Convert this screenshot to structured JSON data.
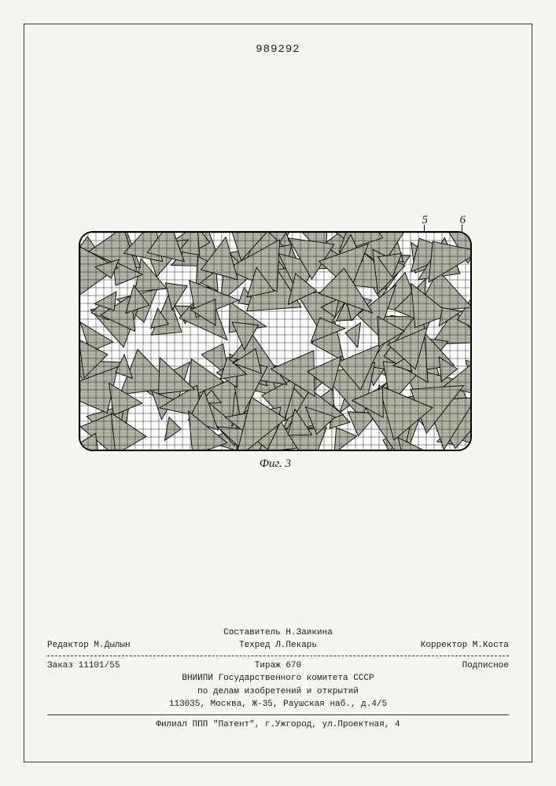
{
  "header": {
    "patent_number": "989292"
  },
  "figure": {
    "callout_5": "5",
    "callout_6": "6",
    "caption": "Фиг. 3",
    "grid": {
      "rows": 28,
      "cols": 50,
      "stroke": "#222",
      "stroke_width": 0.5
    },
    "border_color": "#000",
    "background": "#ffffff",
    "triangle_fill": "#b8b8a8",
    "triangle_stroke": "#000",
    "triangle_count": 180,
    "triangle_size_min": 18,
    "triangle_size_max": 55,
    "random_seed": 989292
  },
  "colophon": {
    "compiler_label": "Составитель",
    "compiler_name": "Н.Заикина",
    "editor_label": "Редактор",
    "editor_name": "М.Дылын",
    "tech_editor_label": "Техред",
    "tech_editor_name": "Л.Пекарь",
    "corrector_label": "Корректор",
    "corrector_name": "М.Коста",
    "order_label": "Заказ",
    "order_number": "11101/55",
    "circulation_label": "Тираж",
    "circulation_number": "670",
    "subscription": "Подписное",
    "org_line1": "ВНИИПИ Государственного комитета СССР",
    "org_line2": "по делам изобретений и открытий",
    "address1": "113035, Москва, Ж-35, Раушская наб., д.4/5",
    "branch": "Филиал ППП \"Патент\", г.Ужгород, ул.Проектная, 4"
  }
}
